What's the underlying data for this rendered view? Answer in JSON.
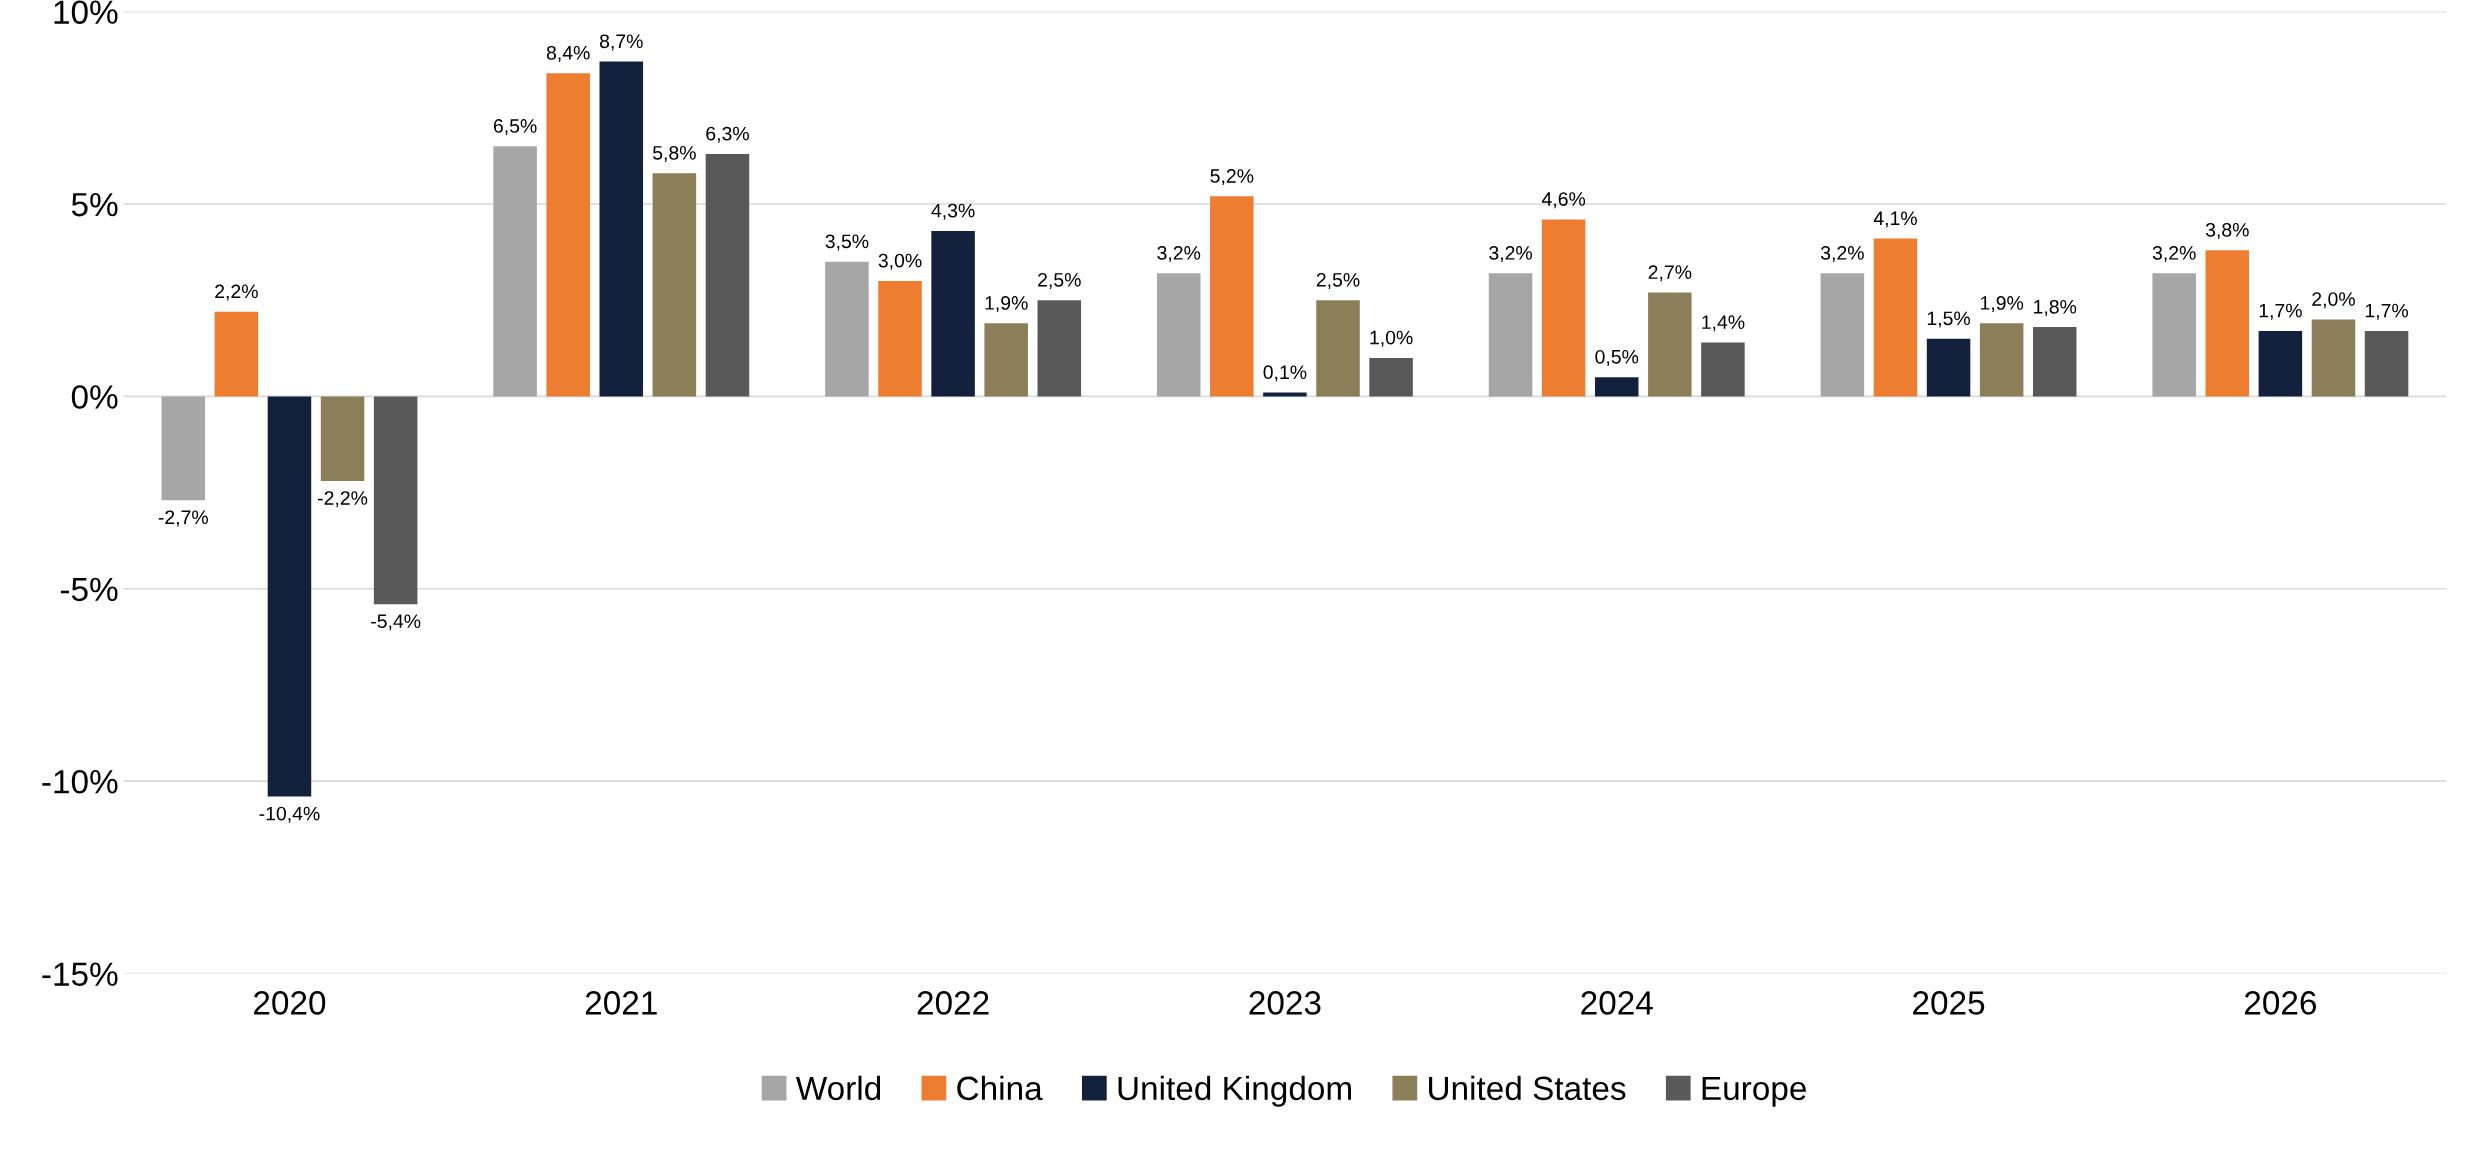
{
  "chart_data": {
    "type": "bar",
    "categories": [
      "2020",
      "2021",
      "2022",
      "2023",
      "2024",
      "2025",
      "2026"
    ],
    "series": [
      {
        "name": "World",
        "color": "#a6a6a6",
        "values": [
          -2.7,
          6.5,
          3.5,
          3.2,
          3.2,
          3.2,
          3.2
        ],
        "value_labels": [
          "-2,7%",
          "6,5%",
          "3,5%",
          "3,2%",
          "3,2%",
          "3,2%",
          "3,2%"
        ]
      },
      {
        "name": "China",
        "color": "#ed7d31",
        "values": [
          2.2,
          8.4,
          3.0,
          5.2,
          4.6,
          4.1,
          3.8
        ],
        "value_labels": [
          "2,2%",
          "8,4%",
          "3,0%",
          "5,2%",
          "4,6%",
          "4,1%",
          "3,8%"
        ]
      },
      {
        "name": "United Kingdom",
        "color": "#14213d",
        "values": [
          -10.4,
          8.7,
          4.3,
          0.1,
          0.5,
          1.5,
          1.7
        ],
        "value_labels": [
          "-10,4%",
          "8,7%",
          "4,3%",
          "0,1%",
          "0,5%",
          "1,5%",
          "1,7%"
        ]
      },
      {
        "name": "United States",
        "color": "#8b7f5a",
        "values": [
          -2.2,
          5.8,
          1.9,
          2.5,
          2.7,
          1.9,
          2.0
        ],
        "value_labels": [
          "-2,2%",
          "5,8%",
          "1,9%",
          "2,5%",
          "2,7%",
          "1,9%",
          "2,0%"
        ]
      },
      {
        "name": "Europe",
        "color": "#595959",
        "values": [
          -5.4,
          6.3,
          2.5,
          1.0,
          1.4,
          1.8,
          1.7
        ],
        "value_labels": [
          "-5,4%",
          "6,3%",
          "2,5%",
          "1,0%",
          "1,4%",
          "1,8%",
          "1,7%"
        ]
      }
    ],
    "ylim": [
      -15,
      10
    ],
    "yticks": [
      {
        "value": -15,
        "label": "-15%"
      },
      {
        "value": -10,
        "label": "-10%"
      },
      {
        "value": -5,
        "label": "-5%"
      },
      {
        "value": 0,
        "label": "0%"
      },
      {
        "value": 5,
        "label": "5%"
      },
      {
        "value": 10,
        "label": "10%"
      }
    ],
    "grid": "y",
    "legend": "bottom"
  }
}
